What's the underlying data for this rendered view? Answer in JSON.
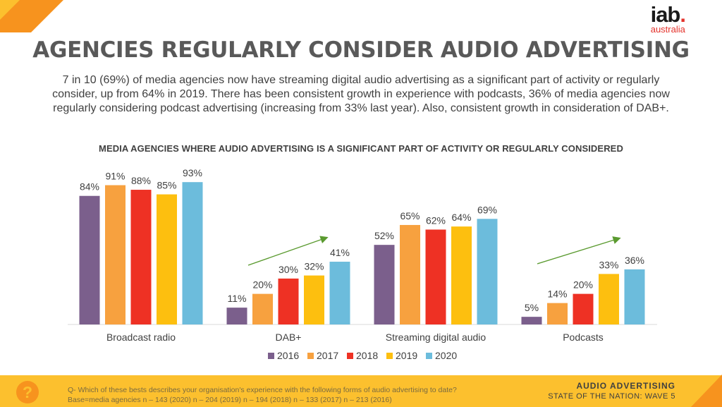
{
  "slide": {
    "title": "AGENCIES REGULARLY CONSIDER AUDIO ADVERTISING",
    "intro_line1": "7 in 10 (69%) of media agencies now have streaming digital audio advertising as a significant part of activity or regularly",
    "intro_line2": "consider, up from 64% in 2019. There has been consistent growth in experience with podcasts, 36% of media agencies now",
    "intro_line3": "regularly considering podcast advertising (increasing from 33% last year). Also, consistent growth in consideration of DAB+."
  },
  "logo": {
    "main": "iab",
    "dot": ".",
    "sub": "australia"
  },
  "footer": {
    "question": "Q- Which of these bests describes your organisation's experience with the following forms of audio advertising to date?",
    "base": "Base=media agencies n – 143 (2020) n – 204 (2019) n – 194 (2018) n – 133 (2017) n – 213 (2016)",
    "label": "AUDIO ADVERTISING",
    "sublabel": "STATE OF THE NATION: WAVE 5",
    "icon": "question-mark-icon"
  },
  "colors": {
    "accent_orange": "#f7931e",
    "footer_yellow": "#fcc02e",
    "trend_arrow": "#5a9a2f"
  },
  "chart_data": {
    "type": "bar",
    "title": "MEDIA AGENCIES WHERE AUDIO ADVERTISING IS A SIGNIFICANT PART OF ACTIVITY OR REGULARLY CONSIDERED",
    "categories": [
      "Broadcast radio",
      "DAB+",
      "Streaming digital audio",
      "Podcasts"
    ],
    "series": [
      {
        "name": "2016",
        "color": "#7b5f8c",
        "values": [
          84,
          11,
          52,
          5
        ]
      },
      {
        "name": "2017",
        "color": "#f7a13f",
        "values": [
          91,
          20,
          65,
          14
        ]
      },
      {
        "name": "2018",
        "color": "#ee3124",
        "values": [
          88,
          30,
          62,
          20
        ]
      },
      {
        "name": "2019",
        "color": "#fdbf0f",
        "values": [
          85,
          32,
          64,
          33
        ]
      },
      {
        "name": "2020",
        "color": "#6cbcdc",
        "values": [
          93,
          41,
          69,
          36
        ]
      }
    ],
    "value_suffix": "%",
    "ylim": [
      0,
      100
    ],
    "legend_position": "bottom",
    "trend_arrows": [
      "DAB+",
      "Podcasts"
    ],
    "grid": false
  }
}
